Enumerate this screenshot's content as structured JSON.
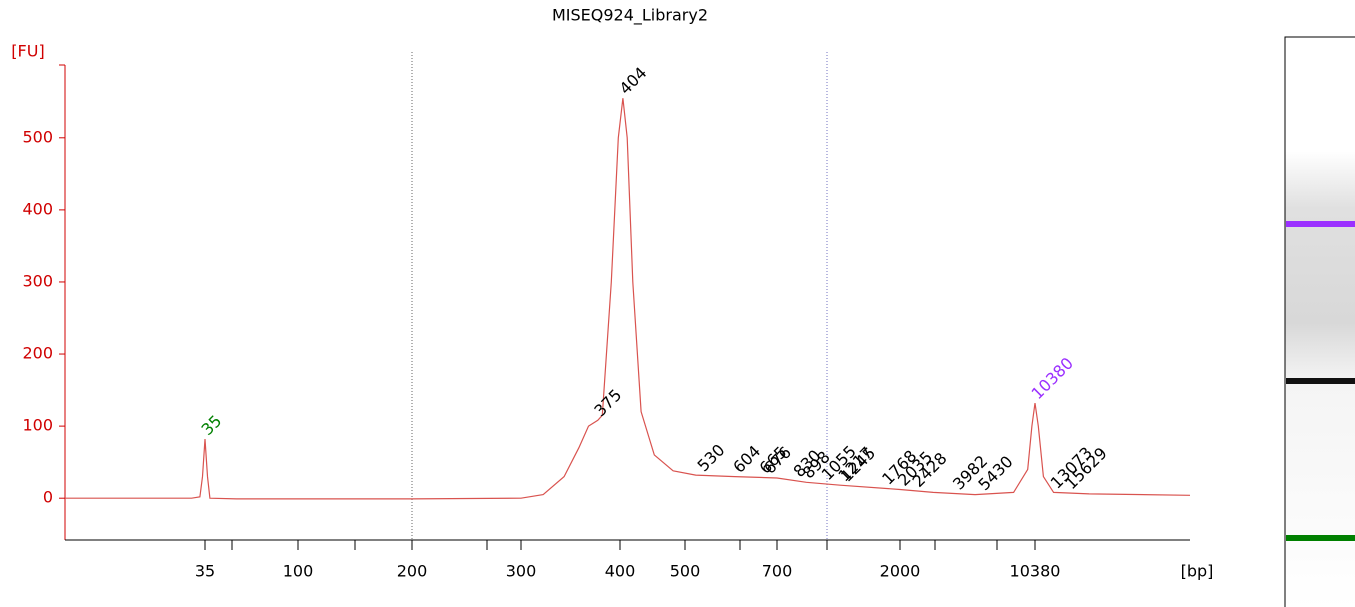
{
  "chart_data": {
    "type": "line",
    "title": "MISEQ924_Library2",
    "x_label": "[bp]",
    "y_label": "[FU]",
    "xlim": [
      7,
      68000
    ],
    "ylim": [
      -58,
      601
    ],
    "log_x": true,
    "xticks": [
      35,
      100,
      200,
      300,
      400,
      500,
      700,
      2000,
      10380
    ],
    "yticks": [
      0,
      100,
      200,
      300,
      400,
      500
    ],
    "series": [
      {
        "name": "trace",
        "color": "#d9534f",
        "x": [
          7,
          30,
          33,
          34,
          35,
          36,
          37,
          50,
          100,
          200,
          300,
          320,
          340,
          355,
          365,
          375,
          380,
          390,
          398,
          404,
          410,
          418,
          430,
          450,
          480,
          520,
          600,
          700,
          900,
          1200,
          2000,
          3000,
          5000,
          8000,
          9500,
          10000,
          10380,
          10800,
          11500,
          13000,
          20000,
          68000
        ],
        "values": [
          0,
          0,
          2,
          30,
          82,
          30,
          0,
          -1,
          -1,
          -1,
          0,
          5,
          30,
          70,
          100,
          108,
          115,
          300,
          500,
          555,
          500,
          300,
          120,
          60,
          38,
          32,
          30,
          28,
          22,
          18,
          12,
          8,
          5,
          8,
          40,
          100,
          132,
          100,
          30,
          8,
          6,
          4
        ]
      }
    ],
    "peaks": [
      35,
      375,
      404,
      530,
      604,
      665,
      676,
      830,
      898,
      1055,
      1217,
      1245,
      1768,
      2035,
      2428,
      3982,
      5430,
      10380,
      13073,
      15629
    ],
    "peak_colors": [
      "#008000",
      "#000000",
      "#000000",
      "#000000",
      "#000000",
      "#000000",
      "#000000",
      "#000000",
      "#000000",
      "#000000",
      "#000000",
      "#000000",
      "#000000",
      "#000000",
      "#000000",
      "#000000",
      "#000000",
      "#9b30ff",
      "#000000",
      "#000000"
    ]
  }
}
